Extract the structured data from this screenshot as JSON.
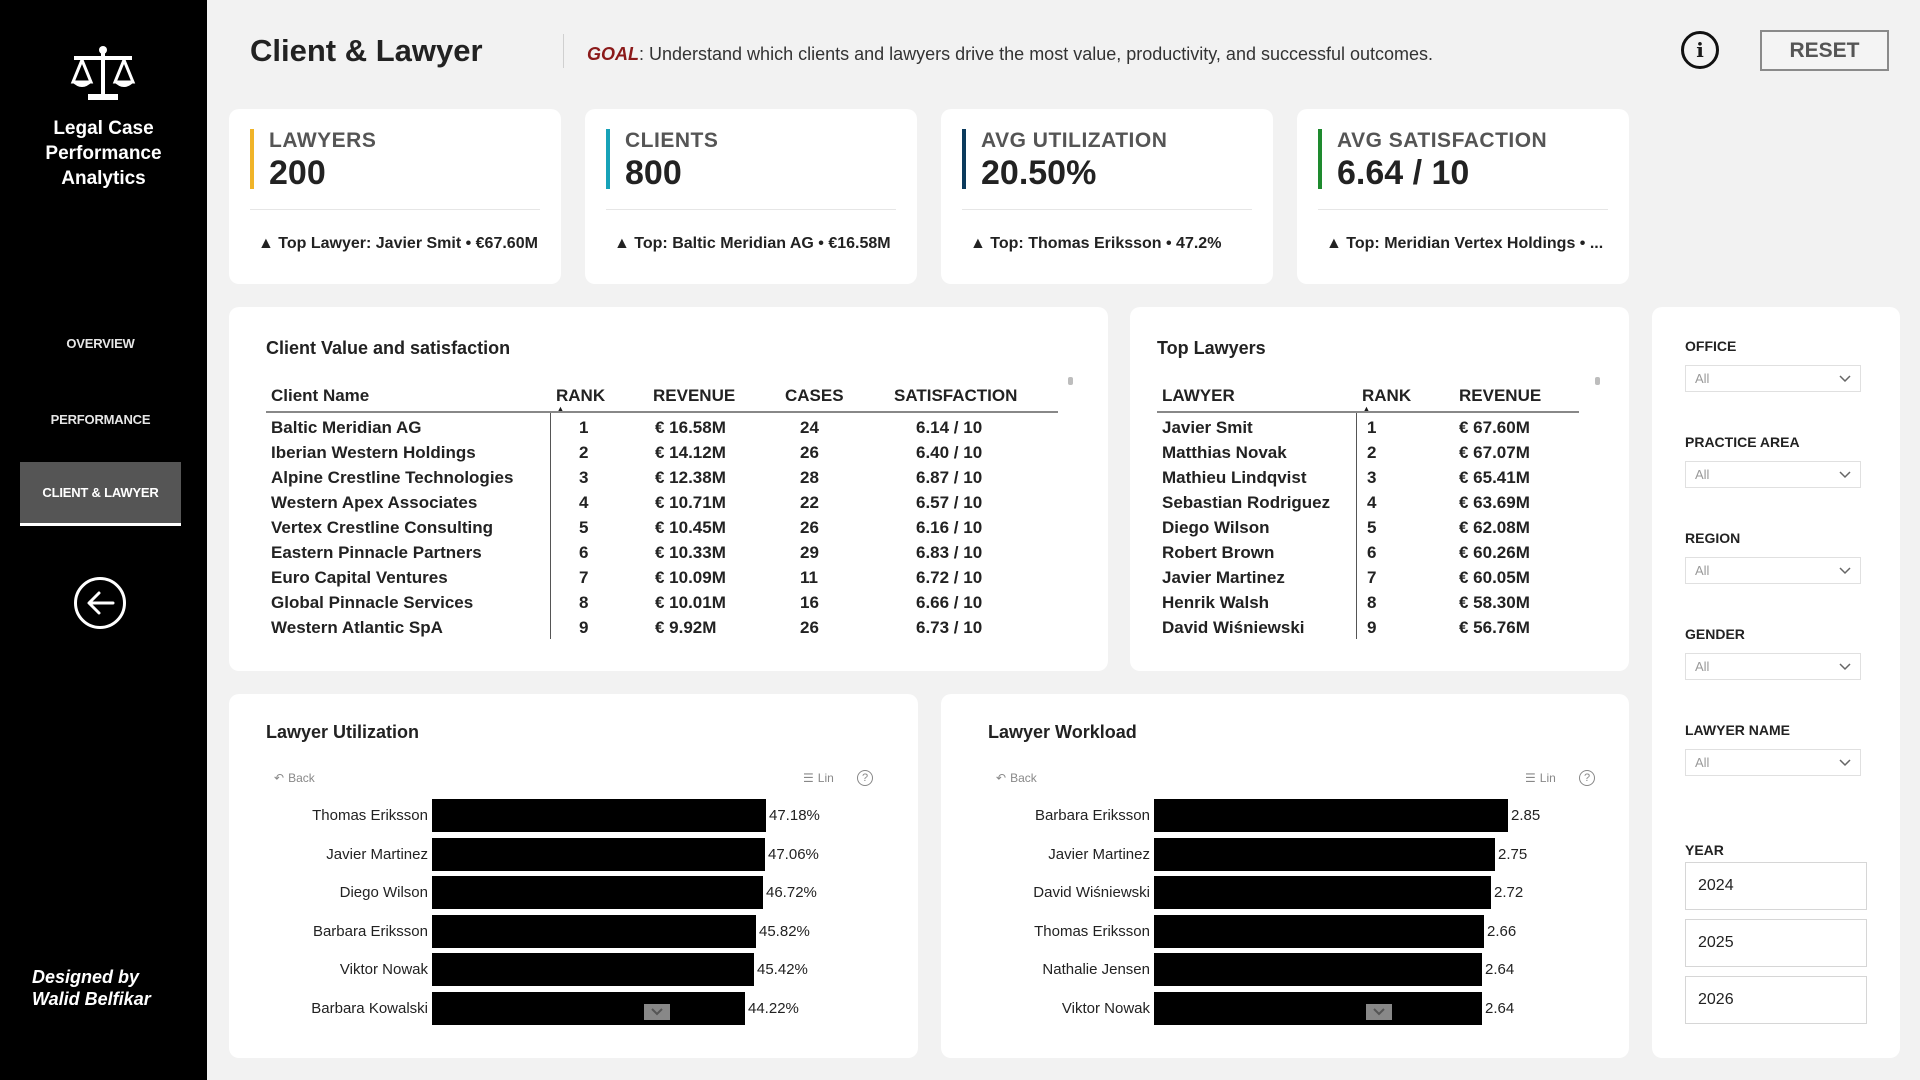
{
  "app": {
    "title_line1": "Legal Case",
    "title_line2": "Performance",
    "title_line3": "Analytics"
  },
  "nav": {
    "items": [
      {
        "label": "OVERVIEW",
        "active": false
      },
      {
        "label": "PERFORMANCE",
        "active": false
      },
      {
        "label": "CLIENT & LAWYER",
        "active": true
      }
    ]
  },
  "credit": {
    "line1": "Designed by",
    "line2": "Walid Belfikar"
  },
  "header": {
    "title": "Client & Lawyer",
    "goal_key": "GOAL",
    "goal_text": ": Understand which clients and lawyers drive the most value, productivity, and successful outcomes.",
    "info_icon": "i",
    "reset_label": "RESET"
  },
  "kpis": [
    {
      "label": "LAWYERS",
      "value": "200",
      "sub": "▲ Top Lawyer: Javier Smit • €67.60M",
      "accent": "#f0b429"
    },
    {
      "label": "CLIENTS",
      "value": "800",
      "sub": "▲ Top: Baltic Meridian AG • €16.58M",
      "accent": "#17a2b8"
    },
    {
      "label": "AVG UTILIZATION",
      "value": "20.50%",
      "sub": "▲ Top: Thomas Eriksson • 47.2%",
      "accent": "#0b3a5c"
    },
    {
      "label": "AVG SATISFACTION",
      "value": "6.64 / 10",
      "sub": "▲ Top: Meridian Vertex Holdings • ...",
      "accent": "#1e8a2e"
    }
  ],
  "client_table": {
    "title": "Client Value and satisfaction",
    "columns": [
      "Client Name",
      "RANK",
      "REVENUE",
      "CASES",
      "SATISFACTION"
    ],
    "rows": [
      [
        "Baltic Meridian AG",
        "1",
        "€ 16.58M",
        "24",
        "6.14 / 10"
      ],
      [
        "Iberian Western Holdings",
        "2",
        "€ 14.12M",
        "26",
        "6.40 / 10"
      ],
      [
        "Alpine Crestline Technologies",
        "3",
        "€ 12.38M",
        "28",
        "6.87 / 10"
      ],
      [
        "Western Apex Associates",
        "4",
        "€ 10.71M",
        "22",
        "6.57 / 10"
      ],
      [
        "Vertex Crestline Consulting",
        "5",
        "€ 10.45M",
        "26",
        "6.16 / 10"
      ],
      [
        "Eastern Pinnacle Partners",
        "6",
        "€ 10.33M",
        "29",
        "6.83 / 10"
      ],
      [
        "Euro Capital Ventures",
        "7",
        "€ 10.09M",
        "11",
        "6.72 / 10"
      ],
      [
        "Global Pinnacle Services",
        "8",
        "€ 10.01M",
        "16",
        "6.66 / 10"
      ],
      [
        "Western Atlantic SpA",
        "9",
        "€ 9.92M",
        "26",
        "6.73 / 10"
      ]
    ]
  },
  "lawyer_table": {
    "title": "Top Lawyers",
    "columns": [
      "LAWYER",
      "RANK",
      "REVENUE"
    ],
    "rows": [
      [
        "Javier Smit",
        "1",
        "€ 67.60M"
      ],
      [
        "Matthias Novak",
        "2",
        "€ 67.07M"
      ],
      [
        "Mathieu Lindqvist",
        "3",
        "€ 65.41M"
      ],
      [
        "Sebastian Rodriguez",
        "4",
        "€ 63.69M"
      ],
      [
        "Diego Wilson",
        "5",
        "€ 62.08M"
      ],
      [
        "Robert Brown",
        "6",
        "€ 60.26M"
      ],
      [
        "Javier Martinez",
        "7",
        "€ 60.05M"
      ],
      [
        "Henrik Walsh",
        "8",
        "€ 58.30M"
      ],
      [
        "David Wiśniewski",
        "9",
        "€ 56.76M"
      ]
    ]
  },
  "chart_data": [
    {
      "type": "bar",
      "title": "Lawyer Utilization",
      "back_label": "Back",
      "mode_label": "Lin",
      "categories": [
        "Thomas Eriksson",
        "Javier Martinez",
        "Diego Wilson",
        "Barbara Eriksson",
        "Viktor Nowak",
        "Barbara Kowalski"
      ],
      "values": [
        47.18,
        47.06,
        46.72,
        45.82,
        45.42,
        44.22
      ],
      "value_labels": [
        "47.18%",
        "47.06%",
        "46.72%",
        "45.82%",
        "45.42%",
        "44.22%"
      ],
      "xlim": [
        0,
        62
      ],
      "bar_color": "#000000"
    },
    {
      "type": "bar",
      "title": "Lawyer Workload",
      "back_label": "Back",
      "mode_label": "Lin",
      "categories": [
        "Barbara Eriksson",
        "Javier Martinez",
        "David Wiśniewski",
        "Thomas Eriksson",
        "Nathalie Jensen",
        "Viktor Nowak"
      ],
      "values": [
        2.85,
        2.75,
        2.72,
        2.66,
        2.64,
        2.64
      ],
      "value_labels": [
        "2.85",
        "2.75",
        "2.72",
        "2.66",
        "2.64",
        "2.64"
      ],
      "xlim": [
        0,
        3.74
      ],
      "bar_color": "#000000"
    }
  ],
  "filters": {
    "dropdowns": [
      {
        "label": "OFFICE",
        "value": "All"
      },
      {
        "label": "PRACTICE AREA",
        "value": "All"
      },
      {
        "label": "REGION",
        "value": "All"
      },
      {
        "label": "GENDER",
        "value": "All"
      },
      {
        "label": "LAWYER NAME",
        "value": "All"
      }
    ],
    "year_label": "YEAR",
    "years": [
      "2024",
      "2025",
      "2026"
    ]
  }
}
